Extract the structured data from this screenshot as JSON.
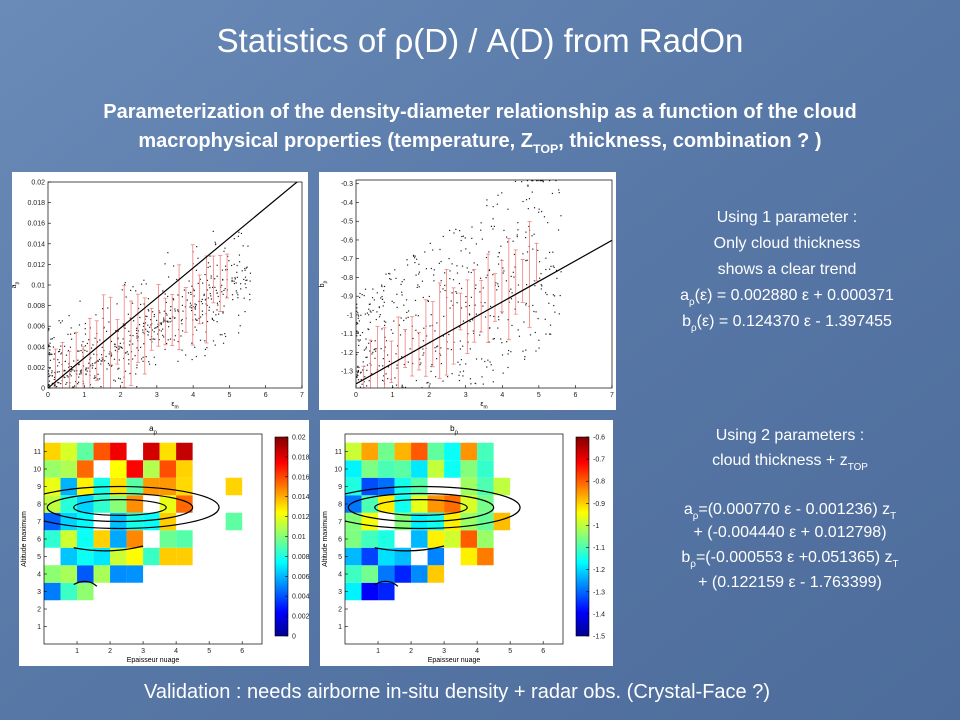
{
  "title": [
    "Statistics of ρ(D) / A(D) from RadOn"
  ],
  "subtitle": [
    [
      "Parameterization of the density-diameter relationship as a function of the cloud"
    ],
    [
      "macrophysical properties (temperature, Z",
      {
        "sub": "TOP"
      },
      ", thickness, combination ? )"
    ]
  ],
  "notes_1": [
    [
      "Using 1 parameter :"
    ],
    [
      "Only cloud thickness"
    ],
    [
      "shows a clear trend"
    ],
    [
      "a",
      {
        "sub": "ρ"
      },
      "(ε) = 0.002880 ε + 0.000371"
    ],
    [
      "b",
      {
        "sub": "ρ"
      },
      "(ε) = 0.124370 ε - 1.397455"
    ]
  ],
  "notes_2": [
    [
      "Using 2 parameters :"
    ],
    [
      "cloud thickness + z",
      {
        "sub": "TOP"
      }
    ],
    [
      "a",
      {
        "sub": "ρ"
      },
      "=(0.000770 ε - 0.001236) z",
      {
        "sub": "T"
      }
    ],
    [
      "+ (-0.004440 ε + 0.012798)"
    ],
    [
      "b",
      {
        "sub": "ρ"
      },
      "=(-0.000553 ε +0.051365) z",
      {
        "sub": "T"
      }
    ],
    [
      "+ (0.122159 ε - 1.763399)"
    ]
  ],
  "footer": [
    "Validation : needs airborne in-situ density + radar obs. (Crystal-Face ?)"
  ],
  "plots": [
    {
      "kind": "scatter",
      "xlim": [
        0,
        7
      ],
      "xticks": [
        0,
        1,
        2,
        3,
        4,
        5,
        6,
        7
      ],
      "ylim": [
        0,
        0.02
      ],
      "yticks": [
        0,
        0.002,
        0.004,
        0.006,
        0.008,
        0.01,
        0.012,
        0.014,
        0.016,
        0.018,
        0.02
      ],
      "xlabel": [
        "ε",
        {
          "sub": "m"
        }
      ],
      "ylabel": [
        "a",
        {
          "sub": "ρ"
        }
      ]
    },
    {
      "kind": "scatter",
      "xlim": [
        0,
        7
      ],
      "xticks": [
        0,
        1,
        2,
        3,
        4,
        5,
        6,
        7
      ],
      "ylim": [
        -1.39,
        -0.28
      ],
      "yticks": [
        -0.3,
        -0.4,
        -0.5,
        -0.6,
        -0.7,
        -0.8,
        -0.9,
        -1,
        -1.1,
        -1.2,
        -1.3
      ],
      "xlabel": [
        "ε",
        {
          "sub": "m"
        }
      ],
      "ylabel": [
        "b",
        {
          "sub": "ρ"
        }
      ]
    },
    {
      "kind": "heatmap",
      "title": [
        "a",
        {
          "sub": "ρ"
        }
      ],
      "xlabel": [
        "Epaisseur nuage"
      ],
      "ylabel": [
        "Altitude maximum"
      ],
      "xlim": [
        0,
        6.6
      ],
      "xticks": [
        1,
        2,
        3,
        4,
        5,
        6
      ],
      "ylim": [
        0,
        12
      ],
      "yticks": [
        1,
        2,
        3,
        4,
        5,
        6,
        7,
        8,
        9,
        10,
        11
      ],
      "clim": [
        0,
        0.02
      ],
      "cticks": [
        0,
        0.002,
        0.004,
        0.006,
        0.008,
        0.01,
        0.012,
        0.014,
        0.016,
        0.018,
        0.02
      ]
    },
    {
      "kind": "heatmap",
      "title": [
        "b",
        {
          "sub": "ρ"
        }
      ],
      "xlabel": [
        "Epaisseur nuage"
      ],
      "ylabel": [
        "Altitude maximum"
      ],
      "xlim": [
        0,
        6.6
      ],
      "xticks": [
        1,
        2,
        3,
        4,
        5,
        6
      ],
      "ylim": [
        0,
        12
      ],
      "yticks": [
        1,
        2,
        3,
        4,
        5,
        6,
        7,
        8,
        9,
        10,
        11
      ],
      "clim": [
        -1.5,
        -0.6
      ],
      "cticks": [
        -1.5,
        -1.4,
        -1.3,
        -1.2,
        -1.1,
        -1,
        -0.9,
        -0.8,
        -0.7,
        -0.6
      ]
    }
  ]
}
